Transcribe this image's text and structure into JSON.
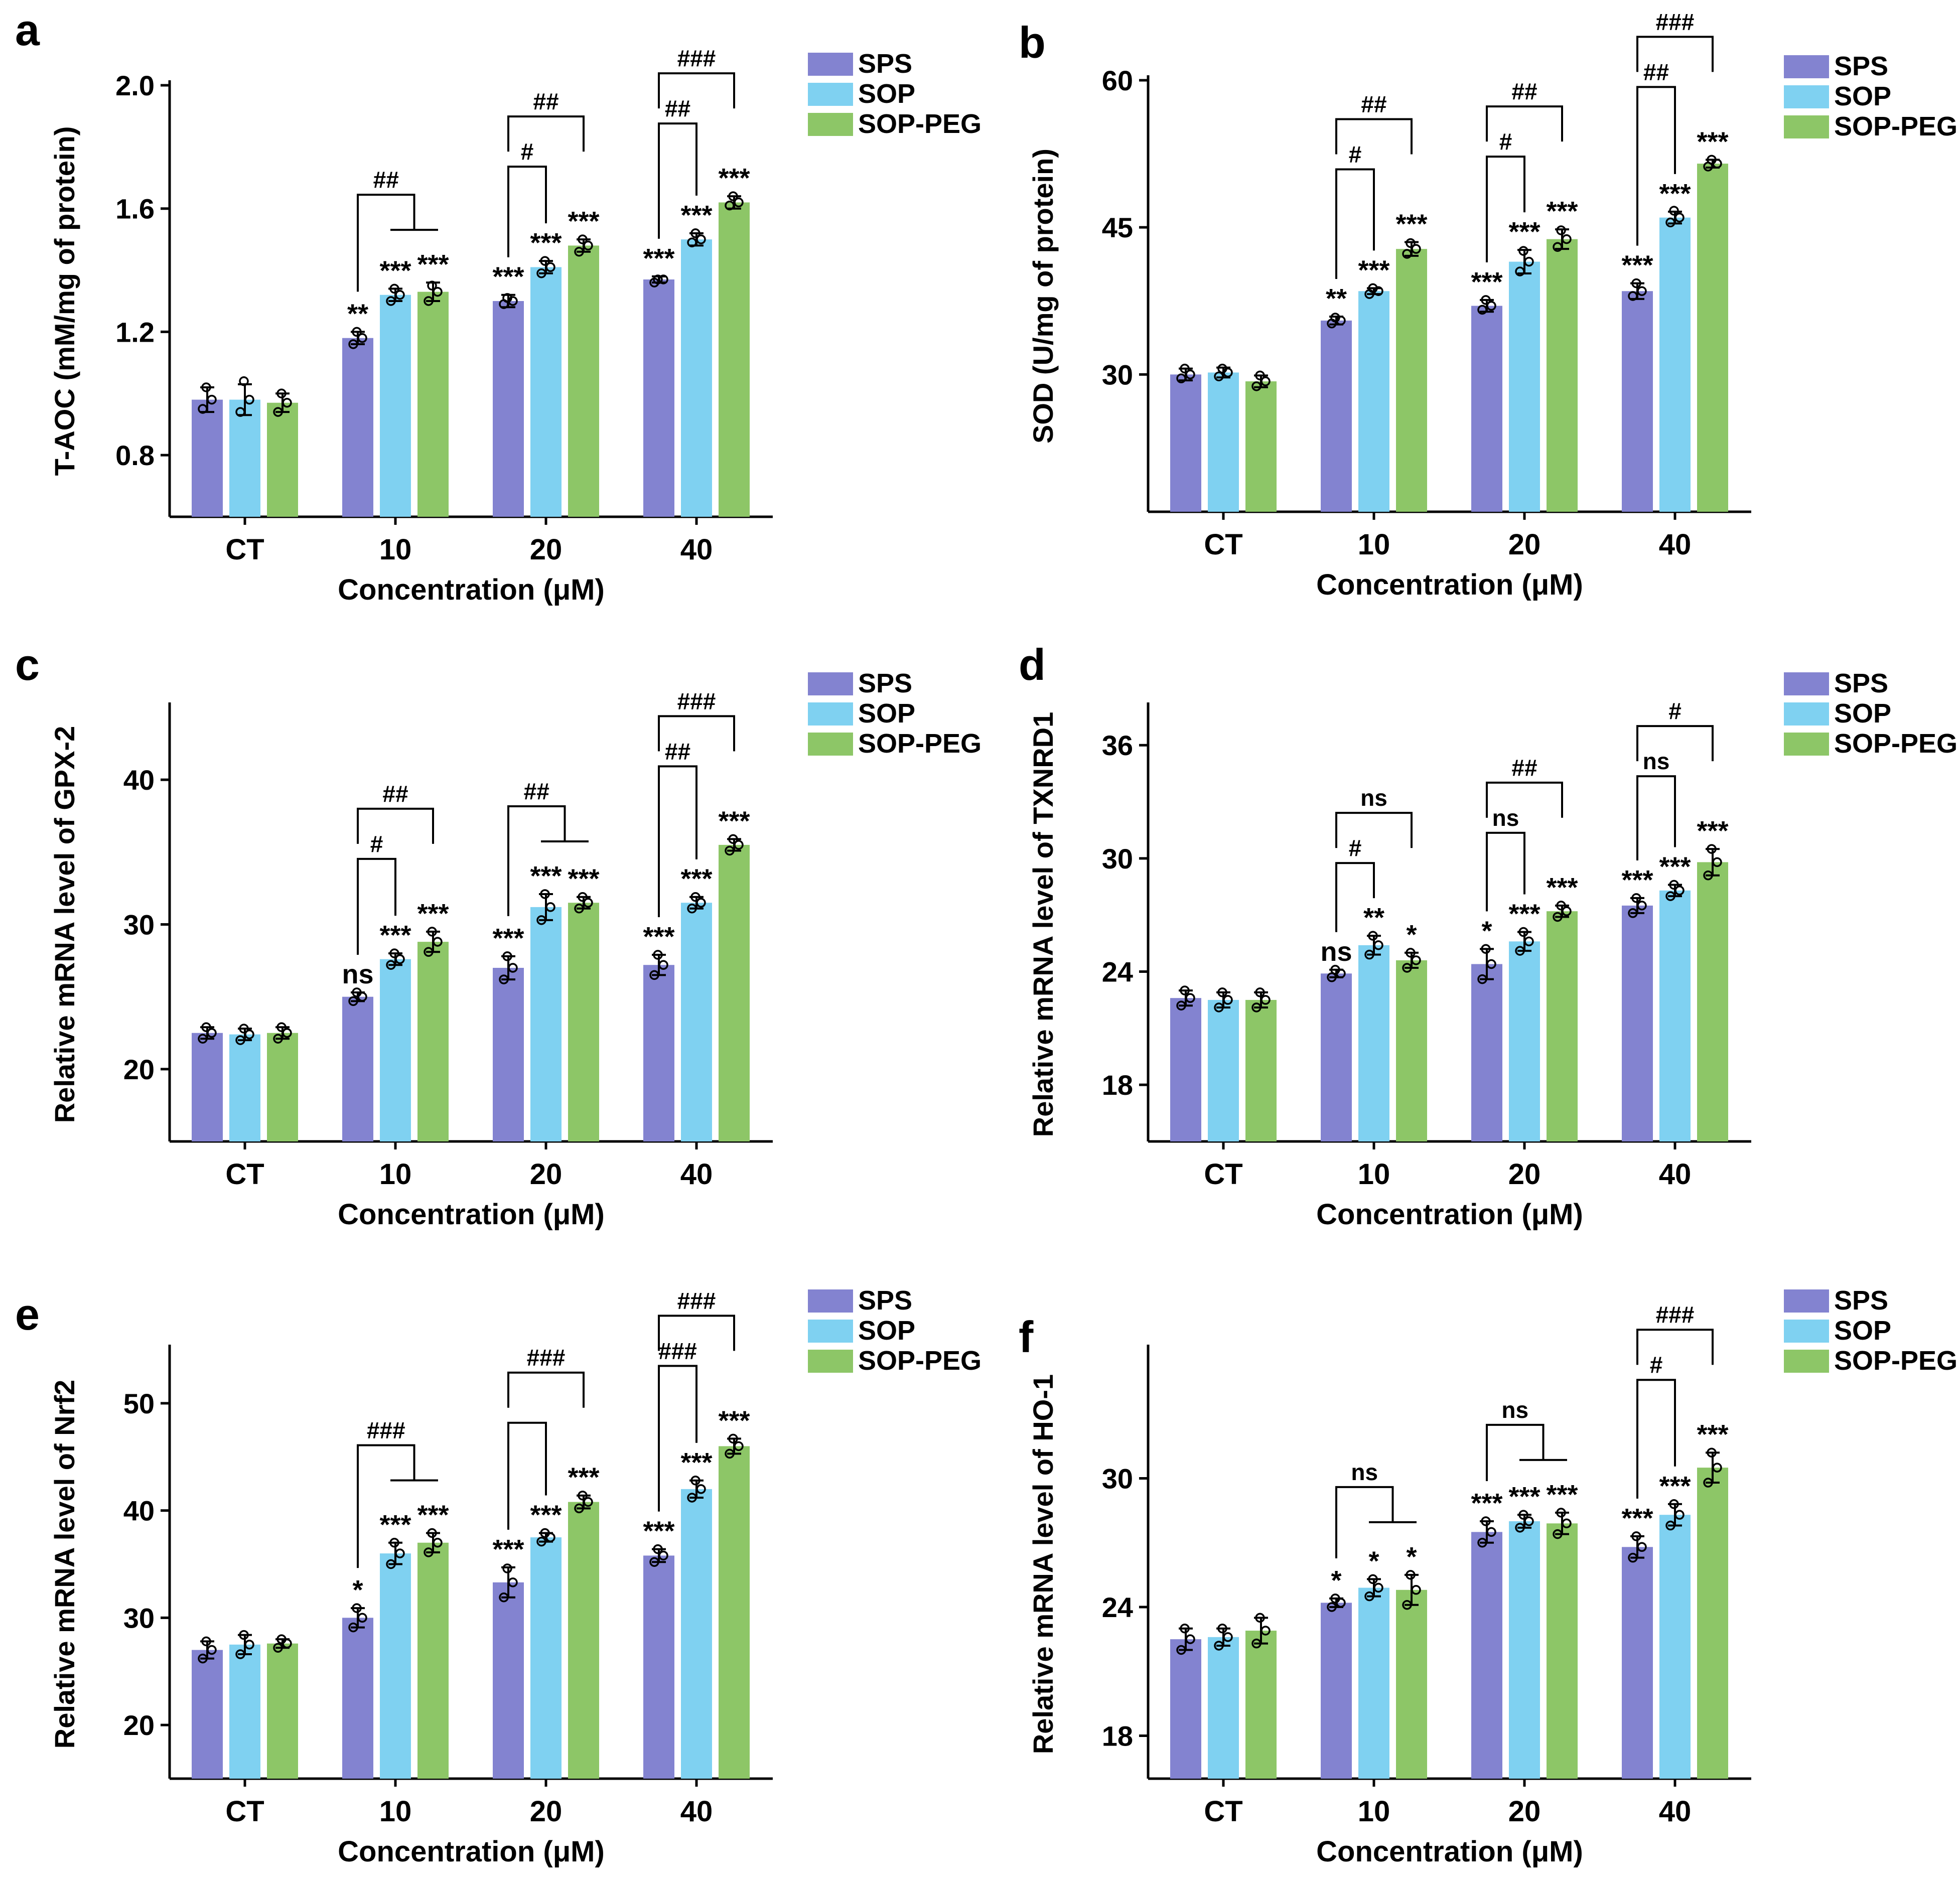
{
  "figure": {
    "series_names": [
      "SPS",
      "SOP",
      "SOP-PEG"
    ],
    "series_colors": [
      "#8383d0",
      "#7fd1f1",
      "#8dc667"
    ],
    "xlabel": "Concentration (μM)"
  },
  "chart_data": [
    {
      "panel": "a",
      "type": "bar",
      "title": "",
      "xlabel": "Concentration (μM)",
      "ylabel": "T-AOC (mM/mg of protein)",
      "ylim": [
        0.6,
        2.0
      ],
      "yticks": [
        "0.8",
        "1.2",
        "1.6",
        "2.0"
      ],
      "categories": [
        "CT",
        "10",
        "20",
        "40"
      ],
      "series": [
        {
          "name": "SPS",
          "values": [
            0.98,
            1.18,
            1.3,
            1.37
          ],
          "err": [
            0.04,
            0.02,
            0.02,
            0.01
          ],
          "points": [
            [
              0.95,
              0.98,
              1.02
            ],
            [
              1.16,
              1.18,
              1.2
            ],
            [
              1.29,
              1.3,
              1.31
            ],
            [
              1.36,
              1.37,
              1.37
            ]
          ]
        },
        {
          "name": "SOP",
          "values": [
            0.98,
            1.32,
            1.41,
            1.5
          ],
          "err": [
            0.05,
            0.02,
            0.02,
            0.02
          ],
          "points": [
            [
              0.94,
              0.98,
              1.04
            ],
            [
              1.3,
              1.32,
              1.34
            ],
            [
              1.39,
              1.41,
              1.43
            ],
            [
              1.49,
              1.5,
              1.52
            ]
          ]
        },
        {
          "name": "SOP-PEG",
          "values": [
            0.97,
            1.33,
            1.48,
            1.62
          ],
          "err": [
            0.03,
            0.03,
            0.02,
            0.02
          ],
          "points": [
            [
              0.94,
              0.97,
              1.0
            ],
            [
              1.3,
              1.33,
              1.35
            ],
            [
              1.46,
              1.48,
              1.5
            ],
            [
              1.61,
              1.62,
              1.64
            ]
          ]
        }
      ],
      "sig": [
        [
          "",
          "",
          ""
        ],
        [
          "**",
          "***",
          "***"
        ],
        [
          "***",
          "***",
          "***"
        ],
        [
          "***",
          "***",
          "***"
        ]
      ],
      "brackets": [
        {
          "group": 1,
          "type": "split",
          "label": "##"
        },
        {
          "group": 2,
          "type": "12",
          "label": "#"
        },
        {
          "group": 2,
          "type": "13",
          "label": "##"
        },
        {
          "group": 3,
          "type": "12",
          "label": "##"
        },
        {
          "group": 3,
          "type": "13",
          "label": "###"
        }
      ]
    },
    {
      "panel": "b",
      "type": "bar",
      "title": "",
      "xlabel": "Concentration (μM)",
      "ylabel": "SOD (U/mg of protein)",
      "ylim": [
        16,
        60
      ],
      "yticks": [
        "30",
        "45",
        "60"
      ],
      "categories": [
        "CT",
        "10",
        "20",
        "40"
      ],
      "series": [
        {
          "name": "SPS",
          "values": [
            30.0,
            35.5,
            37.0,
            38.5
          ],
          "err": [
            0.6,
            0.4,
            0.6,
            0.8
          ],
          "points": [
            [
              29.6,
              30.0,
              30.6
            ],
            [
              35.2,
              35.5,
              35.8
            ],
            [
              36.6,
              37.0,
              37.6
            ],
            [
              38.0,
              38.5,
              39.3
            ]
          ]
        },
        {
          "name": "SOP",
          "values": [
            30.2,
            38.5,
            41.5,
            46.0
          ],
          "err": [
            0.5,
            0.3,
            1.2,
            0.6
          ],
          "points": [
            [
              29.8,
              30.2,
              30.6
            ],
            [
              38.2,
              38.5,
              38.8
            ],
            [
              40.5,
              41.5,
              42.6
            ],
            [
              45.5,
              46.0,
              46.7
            ]
          ]
        },
        {
          "name": "SOP-PEG",
          "values": [
            29.3,
            42.8,
            43.8,
            51.5
          ],
          "err": [
            0.6,
            0.7,
            1.0,
            0.4
          ],
          "points": [
            [
              28.8,
              29.3,
              29.9
            ],
            [
              42.3,
              42.8,
              43.4
            ],
            [
              43.0,
              43.8,
              44.7
            ],
            [
              51.2,
              51.5,
              51.9
            ]
          ]
        }
      ],
      "sig": [
        [
          "",
          "",
          ""
        ],
        [
          "**",
          "***",
          "***"
        ],
        [
          "***",
          "***",
          "***"
        ],
        [
          "***",
          "***",
          "***"
        ]
      ],
      "brackets": [
        {
          "group": 1,
          "type": "12",
          "label": "#"
        },
        {
          "group": 1,
          "type": "13",
          "label": "##"
        },
        {
          "group": 2,
          "type": "12",
          "label": "#"
        },
        {
          "group": 2,
          "type": "13",
          "label": "##"
        },
        {
          "group": 3,
          "type": "12",
          "label": "##"
        },
        {
          "group": 3,
          "type": "13",
          "label": "###"
        }
      ]
    },
    {
      "panel": "c",
      "type": "bar",
      "title": "",
      "xlabel": "Concentration (μM)",
      "ylabel": "Relative mRNA level of GPX-2",
      "ylim": [
        15,
        45
      ],
      "yticks": [
        "20",
        "30",
        "40"
      ],
      "categories": [
        "CT",
        "10",
        "20",
        "40"
      ],
      "series": [
        {
          "name": "SPS",
          "values": [
            22.5,
            25.0,
            27.0,
            27.2
          ],
          "err": [
            0.4,
            0.3,
            0.8,
            0.7
          ],
          "points": [
            [
              22.1,
              22.5,
              22.9
            ],
            [
              24.7,
              25.0,
              25.3
            ],
            [
              26.2,
              27.0,
              27.8
            ],
            [
              26.5,
              27.2,
              27.9
            ]
          ]
        },
        {
          "name": "SOP",
          "values": [
            22.4,
            27.6,
            31.2,
            31.5
          ],
          "err": [
            0.4,
            0.4,
            0.9,
            0.4
          ],
          "points": [
            [
              22.0,
              22.4,
              22.8
            ],
            [
              27.2,
              27.6,
              28.0
            ],
            [
              30.3,
              31.2,
              32.1
            ],
            [
              31.1,
              31.5,
              31.9
            ]
          ]
        },
        {
          "name": "SOP-PEG",
          "values": [
            22.5,
            28.8,
            31.5,
            35.5
          ],
          "err": [
            0.4,
            0.7,
            0.4,
            0.4
          ],
          "points": [
            [
              22.1,
              22.5,
              22.9
            ],
            [
              28.1,
              28.8,
              29.5
            ],
            [
              31.1,
              31.5,
              31.9
            ],
            [
              35.1,
              35.5,
              35.9
            ]
          ]
        }
      ],
      "sig": [
        [
          "",
          "",
          ""
        ],
        [
          "ns",
          "***",
          "***"
        ],
        [
          "***",
          "***",
          "***"
        ],
        [
          "***",
          "***",
          "***"
        ]
      ],
      "brackets": [
        {
          "group": 1,
          "type": "12",
          "label": "#"
        },
        {
          "group": 1,
          "type": "13",
          "label": "##"
        },
        {
          "group": 2,
          "type": "split",
          "label": "##"
        },
        {
          "group": 3,
          "type": "12",
          "label": "##"
        },
        {
          "group": 3,
          "type": "13",
          "label": "###"
        }
      ]
    },
    {
      "panel": "d",
      "type": "bar",
      "title": "",
      "xlabel": "Concentration (μM)",
      "ylabel": "Relative mRNA level of TXNRD1",
      "ylim": [
        15,
        38
      ],
      "yticks": [
        "18",
        "24",
        "30",
        "36"
      ],
      "categories": [
        "CT",
        "10",
        "20",
        "40"
      ],
      "series": [
        {
          "name": "SPS",
          "values": [
            22.6,
            23.9,
            24.4,
            27.5
          ],
          "err": [
            0.4,
            0.2,
            0.8,
            0.4
          ],
          "points": [
            [
              22.2,
              22.6,
              23.0
            ],
            [
              23.7,
              23.9,
              24.1
            ],
            [
              23.6,
              24.4,
              25.2
            ],
            [
              27.1,
              27.5,
              27.9
            ]
          ]
        },
        {
          "name": "SOP",
          "values": [
            22.5,
            25.4,
            25.6,
            28.3
          ],
          "err": [
            0.4,
            0.5,
            0.5,
            0.3
          ],
          "points": [
            [
              22.1,
              22.5,
              22.9
            ],
            [
              24.9,
              25.4,
              25.9
            ],
            [
              25.1,
              25.6,
              26.1
            ],
            [
              28.0,
              28.3,
              28.6
            ]
          ]
        },
        {
          "name": "SOP-PEG",
          "values": [
            22.5,
            24.6,
            27.2,
            29.8
          ],
          "err": [
            0.4,
            0.4,
            0.3,
            0.7
          ],
          "points": [
            [
              22.1,
              22.5,
              22.9
            ],
            [
              24.2,
              24.6,
              25.0
            ],
            [
              26.9,
              27.2,
              27.5
            ],
            [
              29.1,
              29.8,
              30.5
            ]
          ]
        }
      ],
      "sig": [
        [
          "",
          "",
          ""
        ],
        [
          "ns",
          "**",
          "*"
        ],
        [
          "*",
          "***",
          "***"
        ],
        [
          "***",
          "***",
          "***"
        ]
      ],
      "brackets": [
        {
          "group": 1,
          "type": "12",
          "label": "#"
        },
        {
          "group": 1,
          "type": "13",
          "label": "ns"
        },
        {
          "group": 2,
          "type": "12",
          "label": "ns"
        },
        {
          "group": 2,
          "type": "13",
          "label": "##"
        },
        {
          "group": 3,
          "type": "12",
          "label": "ns"
        },
        {
          "group": 3,
          "type": "13",
          "label": "#"
        }
      ]
    },
    {
      "panel": "e",
      "type": "bar",
      "title": "",
      "xlabel": "Concentration (μM)",
      "ylabel": "Relative mRNA level of Nrf2",
      "ylim": [
        15,
        55
      ],
      "yticks": [
        "20",
        "30",
        "40",
        "50"
      ],
      "categories": [
        "CT",
        "10",
        "20",
        "40"
      ],
      "series": [
        {
          "name": "SPS",
          "values": [
            27.0,
            30.0,
            33.3,
            35.8
          ],
          "err": [
            0.8,
            0.9,
            1.4,
            0.6
          ],
          "points": [
            [
              26.2,
              27.0,
              27.8
            ],
            [
              29.1,
              30.0,
              30.9
            ],
            [
              31.9,
              33.3,
              34.6
            ],
            [
              35.2,
              35.8,
              36.4
            ]
          ]
        },
        {
          "name": "SOP",
          "values": [
            27.5,
            36.0,
            37.5,
            42.0
          ],
          "err": [
            0.9,
            1.0,
            0.4,
            0.8
          ],
          "points": [
            [
              26.6,
              27.5,
              28.4
            ],
            [
              35.0,
              36.0,
              37.0
            ],
            [
              37.1,
              37.5,
              37.9
            ],
            [
              41.2,
              42.0,
              42.8
            ]
          ]
        },
        {
          "name": "SOP-PEG",
          "values": [
            27.6,
            37.0,
            40.8,
            46.0
          ],
          "err": [
            0.4,
            0.9,
            0.6,
            0.7
          ],
          "points": [
            [
              27.2,
              27.6,
              28.0
            ],
            [
              36.1,
              37.0,
              37.9
            ],
            [
              40.2,
              40.8,
              41.4
            ],
            [
              45.3,
              46.0,
              46.7
            ]
          ]
        }
      ],
      "sig": [
        [
          "",
          "",
          ""
        ],
        [
          "*",
          "***",
          "***"
        ],
        [
          "***",
          "***",
          "***"
        ],
        [
          "***",
          "***",
          "***"
        ]
      ],
      "brackets": [
        {
          "group": 1,
          "type": "split",
          "label": "###"
        },
        {
          "group": 2,
          "type": "12",
          "label": ""
        },
        {
          "group": 2,
          "type": "13",
          "label": "###"
        },
        {
          "group": 3,
          "type": "12",
          "label": "###"
        },
        {
          "group": 3,
          "type": "13",
          "label": "###"
        }
      ]
    },
    {
      "panel": "f",
      "type": "bar",
      "title": "",
      "xlabel": "Concentration (μM)",
      "ylabel": "Relative mRNA level of HO-1",
      "ylim": [
        16,
        36
      ],
      "yticks": [
        "18",
        "24",
        "30"
      ],
      "categories": [
        "CT",
        "10",
        "20",
        "40"
      ],
      "series": [
        {
          "name": "SPS",
          "values": [
            22.5,
            24.2,
            27.5,
            26.8
          ],
          "err": [
            0.5,
            0.2,
            0.5,
            0.5
          ],
          "points": [
            [
              22.0,
              22.5,
              23.0
            ],
            [
              24.0,
              24.2,
              24.4
            ],
            [
              27.0,
              27.5,
              28.0
            ],
            [
              26.3,
              26.8,
              27.3
            ]
          ]
        },
        {
          "name": "SOP",
          "values": [
            22.6,
            24.9,
            28.0,
            28.3
          ],
          "err": [
            0.4,
            0.4,
            0.3,
            0.5
          ],
          "points": [
            [
              22.2,
              22.6,
              23.0
            ],
            [
              24.5,
              24.9,
              25.3
            ],
            [
              27.7,
              28.0,
              28.3
            ],
            [
              27.8,
              28.3,
              28.8
            ]
          ]
        },
        {
          "name": "SOP-PEG",
          "values": [
            22.9,
            24.8,
            27.9,
            30.5
          ],
          "err": [
            0.6,
            0.7,
            0.5,
            0.7
          ],
          "points": [
            [
              22.3,
              22.9,
              23.5
            ],
            [
              24.1,
              24.8,
              25.5
            ],
            [
              27.4,
              27.9,
              28.4
            ],
            [
              29.8,
              30.5,
              31.2
            ]
          ]
        }
      ],
      "sig": [
        [
          "",
          "",
          ""
        ],
        [
          "*",
          "*",
          "*"
        ],
        [
          "***",
          "***",
          "***"
        ],
        [
          "***",
          "***",
          "***"
        ]
      ],
      "brackets": [
        {
          "group": 1,
          "type": "split",
          "label": "ns"
        },
        {
          "group": 2,
          "type": "split",
          "label": "ns"
        },
        {
          "group": 3,
          "type": "12",
          "label": "#"
        },
        {
          "group": 3,
          "type": "13",
          "label": "###"
        }
      ]
    }
  ]
}
